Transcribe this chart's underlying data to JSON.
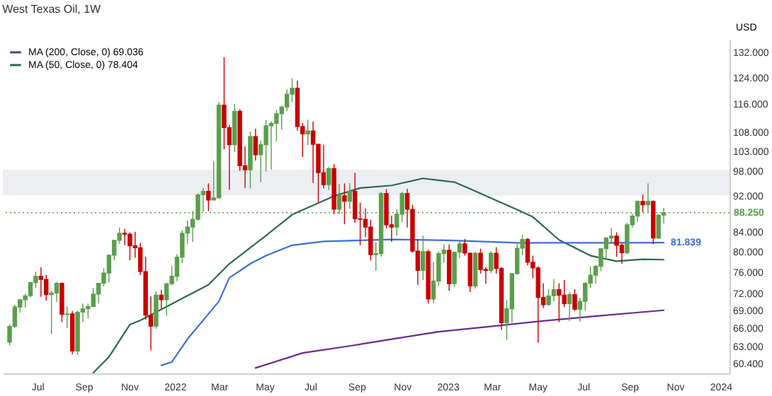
{
  "chart_data": {
    "type": "candlestick",
    "title": "West Texas Oil, 1W",
    "ylabel": "USD",
    "x": [
      "2021-05-24",
      "2021-05-31",
      "2021-06-07",
      "2021-06-14",
      "2021-06-21",
      "2021-06-28",
      "2021-07-05",
      "2021-07-12",
      "2021-07-19",
      "2021-07-26",
      "2021-08-02",
      "2021-08-09",
      "2021-08-16",
      "2021-08-23",
      "2021-08-30",
      "2021-09-06",
      "2021-09-13",
      "2021-09-20",
      "2021-09-27",
      "2021-10-04",
      "2021-10-11",
      "2021-10-18",
      "2021-10-25",
      "2021-11-01",
      "2021-11-08",
      "2021-11-15",
      "2021-11-22",
      "2021-11-29",
      "2021-12-06",
      "2021-12-13",
      "2021-12-20",
      "2021-12-27",
      "2022-01-03",
      "2022-01-10",
      "2022-01-17",
      "2022-01-24",
      "2022-01-31",
      "2022-02-07",
      "2022-02-14",
      "2022-02-21",
      "2022-02-28",
      "2022-03-07",
      "2022-03-14",
      "2022-03-21",
      "2022-03-28",
      "2022-04-04",
      "2022-04-11",
      "2022-04-18",
      "2022-04-25",
      "2022-05-02",
      "2022-05-09",
      "2022-05-16",
      "2022-05-23",
      "2022-05-30",
      "2022-06-06",
      "2022-06-13",
      "2022-06-20",
      "2022-06-27",
      "2022-07-04",
      "2022-07-11",
      "2022-07-18",
      "2022-07-25",
      "2022-08-01",
      "2022-08-08",
      "2022-08-15",
      "2022-08-22",
      "2022-08-29",
      "2022-09-05",
      "2022-09-12",
      "2022-09-19",
      "2022-09-26",
      "2022-10-03",
      "2022-10-10",
      "2022-10-17",
      "2022-10-24",
      "2022-10-31",
      "2022-11-07",
      "2022-11-14",
      "2022-11-21",
      "2022-11-28",
      "2022-12-05",
      "2022-12-12",
      "2022-12-19",
      "2022-12-26",
      "2023-01-02",
      "2023-01-09",
      "2023-01-16",
      "2023-01-23",
      "2023-01-30",
      "2023-02-06",
      "2023-02-13",
      "2023-02-20",
      "2023-02-27",
      "2023-03-06",
      "2023-03-13",
      "2023-03-20",
      "2023-03-27",
      "2023-04-03",
      "2023-04-10",
      "2023-04-17",
      "2023-04-24",
      "2023-05-01",
      "2023-05-08",
      "2023-05-15",
      "2023-05-22",
      "2023-05-29",
      "2023-06-05",
      "2023-06-12",
      "2023-06-19",
      "2023-06-26",
      "2023-07-03",
      "2023-07-10",
      "2023-07-17",
      "2023-07-24",
      "2023-07-31",
      "2023-08-07",
      "2023-08-14",
      "2023-08-21",
      "2023-08-28",
      "2023-09-04",
      "2023-09-11",
      "2023-09-18",
      "2023-09-25",
      "2023-10-02",
      "2023-10-09",
      "2023-10-16"
    ],
    "ohlc": [
      [
        63.7,
        66.6,
        63.2,
        66.3
      ],
      [
        66.3,
        70.0,
        66.0,
        69.6
      ],
      [
        69.6,
        71.0,
        68.6,
        70.9
      ],
      [
        70.9,
        72.0,
        69.5,
        71.6
      ],
      [
        71.6,
        74.2,
        71.3,
        74.0
      ],
      [
        74.0,
        76.1,
        73.0,
        75.2
      ],
      [
        75.2,
        76.9,
        71.4,
        74.6
      ],
      [
        74.6,
        75.5,
        70.7,
        71.8
      ],
      [
        71.8,
        72.5,
        65.0,
        72.1
      ],
      [
        72.1,
        74.1,
        70.5,
        73.9
      ],
      [
        73.9,
        74.0,
        67.0,
        68.3
      ],
      [
        68.3,
        69.7,
        66.0,
        68.4
      ],
      [
        68.4,
        68.9,
        61.8,
        62.3
      ],
      [
        62.3,
        69.0,
        61.7,
        68.7
      ],
      [
        68.7,
        70.2,
        67.0,
        69.3
      ],
      [
        69.3,
        70.2,
        67.6,
        69.7
      ],
      [
        69.7,
        73.0,
        69.6,
        71.9
      ],
      [
        71.9,
        74.0,
        70.2,
        73.9
      ],
      [
        73.9,
        76.7,
        73.3,
        75.8
      ],
      [
        75.8,
        79.5,
        74.0,
        79.3
      ],
      [
        79.3,
        82.4,
        78.3,
        82.3
      ],
      [
        82.3,
        85.0,
        81.6,
        83.8
      ],
      [
        83.8,
        84.7,
        81.3,
        83.6
      ],
      [
        83.6,
        84.0,
        78.3,
        81.2
      ],
      [
        81.2,
        84.1,
        78.8,
        80.8
      ],
      [
        80.8,
        81.8,
        75.4,
        76.1
      ],
      [
        76.1,
        79.0,
        67.4,
        68.2
      ],
      [
        68.2,
        71.5,
        62.4,
        66.3
      ],
      [
        66.3,
        72.4,
        65.9,
        71.7
      ],
      [
        71.7,
        72.7,
        69.3,
        70.9
      ],
      [
        70.9,
        74.0,
        68.1,
        73.8
      ],
      [
        73.8,
        77.2,
        73.5,
        75.2
      ],
      [
        75.2,
        79.5,
        74.3,
        78.9
      ],
      [
        78.9,
        84.4,
        77.8,
        83.8
      ],
      [
        83.8,
        86.5,
        81.6,
        85.1
      ],
      [
        85.1,
        88.6,
        82.0,
        86.8
      ],
      [
        86.8,
        92.7,
        86.5,
        92.3
      ],
      [
        92.3,
        93.9,
        88.4,
        93.1
      ],
      [
        93.1,
        95.0,
        88.6,
        91.1
      ],
      [
        91.1,
        100.5,
        91.0,
        91.6
      ],
      [
        91.6,
        116.6,
        91.5,
        115.7
      ],
      [
        115.7,
        130.5,
        103.5,
        109.3
      ],
      [
        109.3,
        110.0,
        93.5,
        104.7
      ],
      [
        104.7,
        116.0,
        102.8,
        113.9
      ],
      [
        113.9,
        114.5,
        98.0,
        99.3
      ],
      [
        99.3,
        104.2,
        93.9,
        98.3
      ],
      [
        98.3,
        108.2,
        93.8,
        106.9
      ],
      [
        106.9,
        109.0,
        100.6,
        102.1
      ],
      [
        102.1,
        105.8,
        95.3,
        104.7
      ],
      [
        104.7,
        111.4,
        97.9,
        109.8
      ],
      [
        109.8,
        111.0,
        98.4,
        110.5
      ],
      [
        110.5,
        114.3,
        105.6,
        113.2
      ],
      [
        113.2,
        115.5,
        108.8,
        115.1
      ],
      [
        115.1,
        120.4,
        113.9,
        118.9
      ],
      [
        118.9,
        123.7,
        116.5,
        120.7
      ],
      [
        120.7,
        123.0,
        108.5,
        109.6
      ],
      [
        109.6,
        110.5,
        101.5,
        107.6
      ],
      [
        107.6,
        111.5,
        104.6,
        108.4
      ],
      [
        108.4,
        111.0,
        95.1,
        104.8
      ],
      [
        104.8,
        105.0,
        90.6,
        97.6
      ],
      [
        97.6,
        104.7,
        93.8,
        94.7
      ],
      [
        94.7,
        99.0,
        93.4,
        98.6
      ],
      [
        98.6,
        99.7,
        87.9,
        89.0
      ],
      [
        89.0,
        94.9,
        87.9,
        92.1
      ],
      [
        92.1,
        95.0,
        85.7,
        90.8
      ],
      [
        90.8,
        95.1,
        89.1,
        93.1
      ],
      [
        93.1,
        97.6,
        86.0,
        86.9
      ],
      [
        86.9,
        90.5,
        81.3,
        86.8
      ],
      [
        86.8,
        89.2,
        83.0,
        85.1
      ],
      [
        85.1,
        86.7,
        78.2,
        79.4
      ],
      [
        79.4,
        82.0,
        76.3,
        79.6
      ],
      [
        79.6,
        93.0,
        79.0,
        92.6
      ],
      [
        92.6,
        93.6,
        84.8,
        85.6
      ],
      [
        85.6,
        87.6,
        82.0,
        85.1
      ],
      [
        85.1,
        89.0,
        83.3,
        87.9
      ],
      [
        87.9,
        93.0,
        86.2,
        92.6
      ],
      [
        92.6,
        93.7,
        85.0,
        89.0
      ],
      [
        89.0,
        90.0,
        79.8,
        80.1
      ],
      [
        80.1,
        82.6,
        73.6,
        76.3
      ],
      [
        76.3,
        83.3,
        74.5,
        80.0
      ],
      [
        80.0,
        80.4,
        70.2,
        71.0
      ],
      [
        71.0,
        77.9,
        70.3,
        74.3
      ],
      [
        74.3,
        80.1,
        73.4,
        79.6
      ],
      [
        79.6,
        81.5,
        77.8,
        80.3
      ],
      [
        80.3,
        81.5,
        72.5,
        73.8
      ],
      [
        73.8,
        80.0,
        73.2,
        79.9
      ],
      [
        79.9,
        82.4,
        78.7,
        81.6
      ],
      [
        81.6,
        82.6,
        79.2,
        79.7
      ],
      [
        79.7,
        79.8,
        72.3,
        73.4
      ],
      [
        73.4,
        80.0,
        72.9,
        79.7
      ],
      [
        79.7,
        80.6,
        75.7,
        76.5
      ],
      [
        76.5,
        77.0,
        73.8,
        76.3
      ],
      [
        76.3,
        80.1,
        75.8,
        79.7
      ],
      [
        79.7,
        80.9,
        75.7,
        76.7
      ],
      [
        76.7,
        77.0,
        65.7,
        66.9
      ],
      [
        66.9,
        70.8,
        64.1,
        69.3
      ],
      [
        69.3,
        75.7,
        66.9,
        75.7
      ],
      [
        75.7,
        81.8,
        75.5,
        80.7
      ],
      [
        80.7,
        83.5,
        79.3,
        82.5
      ],
      [
        82.5,
        82.8,
        77.3,
        77.9
      ],
      [
        77.9,
        79.2,
        74.8,
        76.8
      ],
      [
        76.8,
        77.1,
        63.6,
        71.3
      ],
      [
        71.3,
        73.9,
        69.4,
        70.0
      ],
      [
        70.0,
        72.8,
        69.9,
        71.6
      ],
      [
        71.6,
        74.7,
        70.6,
        72.7
      ],
      [
        72.7,
        73.9,
        67.0,
        71.7
      ],
      [
        71.7,
        74.5,
        69.6,
        70.2
      ],
      [
        70.2,
        72.2,
        67.2,
        71.8
      ],
      [
        71.8,
        72.8,
        68.9,
        69.2
      ],
      [
        69.2,
        71.2,
        67.1,
        70.6
      ],
      [
        70.6,
        74.1,
        69.0,
        73.9
      ],
      [
        73.9,
        77.1,
        73.0,
        75.4
      ],
      [
        75.4,
        77.4,
        73.8,
        77.1
      ],
      [
        77.1,
        80.7,
        76.2,
        80.6
      ],
      [
        80.6,
        83.0,
        78.7,
        82.8
      ],
      [
        82.8,
        84.9,
        81.6,
        83.2
      ],
      [
        83.2,
        84.0,
        79.0,
        81.3
      ],
      [
        81.3,
        81.8,
        77.6,
        79.8
      ],
      [
        79.8,
        86.0,
        79.5,
        85.6
      ],
      [
        85.6,
        88.0,
        85.0,
        87.5
      ],
      [
        87.5,
        91.0,
        86.3,
        90.8
      ],
      [
        90.8,
        92.4,
        88.3,
        90.0
      ],
      [
        90.0,
        95.0,
        88.3,
        90.8
      ],
      [
        90.8,
        91.0,
        81.5,
        82.8
      ],
      [
        82.8,
        87.9,
        82.6,
        87.7
      ],
      [
        87.7,
        89.3,
        85.9,
        88.25
      ]
    ],
    "colors": [
      "#5a9f4c",
      "#5a9f4c",
      "#5a9f4c",
      "#5a9f4c",
      "#5a9f4c",
      "#5a9f4c",
      "#c80000",
      "#c80000",
      "#5a9f4c",
      "#5a9f4c",
      "#c80000",
      "#5a9f4c",
      "#c80000",
      "#5a9f4c",
      "#5a9f4c",
      "#5a9f4c",
      "#5a9f4c",
      "#5a9f4c",
      "#5a9f4c",
      "#5a9f4c",
      "#5a9f4c",
      "#5a9f4c",
      "#c80000",
      "#c80000",
      "#c80000",
      "#c80000",
      "#c80000",
      "#c80000",
      "#5a9f4c",
      "#c80000",
      "#5a9f4c",
      "#5a9f4c",
      "#5a9f4c",
      "#5a9f4c",
      "#5a9f4c",
      "#5a9f4c",
      "#5a9f4c",
      "#5a9f4c",
      "#c80000",
      "#5a9f4c",
      "#5a9f4c",
      "#c80000",
      "#c80000",
      "#5a9f4c",
      "#c80000",
      "#c80000",
      "#5a9f4c",
      "#c80000",
      "#5a9f4c",
      "#5a9f4c",
      "#5a9f4c",
      "#5a9f4c",
      "#5a9f4c",
      "#5a9f4c",
      "#5a9f4c",
      "#c80000",
      "#c80000",
      "#5a9f4c",
      "#c80000",
      "#c80000",
      "#c80000",
      "#5a9f4c",
      "#c80000",
      "#5a9f4c",
      "#c80000",
      "#5a9f4c",
      "#c80000",
      "#c80000",
      "#c80000",
      "#c80000",
      "#5a9f4c",
      "#5a9f4c",
      "#c80000",
      "#c80000",
      "#5a9f4c",
      "#5a9f4c",
      "#c80000",
      "#c80000",
      "#c80000",
      "#5a9f4c",
      "#c80000",
      "#5a9f4c",
      "#5a9f4c",
      "#5a9f4c",
      "#c80000",
      "#5a9f4c",
      "#5a9f4c",
      "#c80000",
      "#c80000",
      "#5a9f4c",
      "#c80000",
      "#c80000",
      "#5a9f4c",
      "#c80000",
      "#c80000",
      "#5a9f4c",
      "#5a9f4c",
      "#5a9f4c",
      "#5a9f4c",
      "#c80000",
      "#c80000",
      "#c80000",
      "#c80000",
      "#5a9f4c",
      "#5a9f4c",
      "#c80000",
      "#c80000",
      "#5a9f4c",
      "#c80000",
      "#5a9f4c",
      "#5a9f4c",
      "#5a9f4c",
      "#5a9f4c",
      "#5a9f4c",
      "#5a9f4c",
      "#5a9f4c",
      "#c80000",
      "#c80000",
      "#5a9f4c",
      "#5a9f4c",
      "#5a9f4c",
      "#c80000",
      "#5a9f4c",
      "#c80000",
      "#5a9f4c",
      "#5a9f4c"
    ],
    "series": [
      {
        "name": "MA (200, Close, 0) 69.036",
        "type": "line",
        "color": "#6a2c91",
        "x": [
          "2022-04-18",
          "2022-06-20",
          "2022-08-22",
          "2022-10-17",
          "2022-12-19",
          "2023-02-20",
          "2023-05-15",
          "2023-07-24",
          "2023-10-16"
        ],
        "values": [
          59.7,
          62.0,
          63.1,
          64.2,
          65.4,
          66.2,
          67.3,
          68.1,
          69.036
        ]
      },
      {
        "name": "MA (50, Close, 0) 78.404",
        "type": "line",
        "color": "#2e6b4f",
        "x": [
          "2021-09-13",
          "2021-10-04",
          "2021-11-01",
          "2021-11-15",
          "2022-02-14",
          "2022-03-14",
          "2022-05-02",
          "2022-06-06",
          "2022-08-01",
          "2022-09-05",
          "2022-10-17",
          "2022-11-28",
          "2023-01-09",
          "2023-01-30",
          "2023-03-06",
          "2023-04-03",
          "2023-04-24",
          "2023-05-29",
          "2023-07-10",
          "2023-08-14",
          "2023-09-18",
          "2023-10-16"
        ],
        "values": [
          59.0,
          61.4,
          66.6,
          67.3,
          73.6,
          77.6,
          83.3,
          87.8,
          92.0,
          93.9,
          94.5,
          96.2,
          95.3,
          93.7,
          91.0,
          88.9,
          87.3,
          82.4,
          79.2,
          78.1,
          78.5,
          78.404
        ]
      },
      {
        "type": "line",
        "color": "#3d6fe0",
        "x": [
          "2021-12-13",
          "2021-12-27",
          "2022-01-17",
          "2022-02-28",
          "2022-03-14",
          "2022-04-11",
          "2022-05-02",
          "2022-06-06",
          "2022-07-18",
          "2022-10-17",
          "2023-01-02",
          "2023-04-03",
          "2023-07-24",
          "2023-10-16"
        ],
        "values": [
          60.1,
          60.6,
          64.2,
          70.6,
          74.9,
          77.6,
          79.2,
          81.3,
          82.1,
          82.5,
          82.3,
          81.8,
          81.8,
          81.839
        ]
      }
    ],
    "xlim": [
      "2021-05-15",
      "2024-01-12"
    ],
    "xticks": [
      {
        "value": "2021-07-01",
        "label": "Jul"
      },
      {
        "value": "2021-09-01",
        "label": "Sep"
      },
      {
        "value": "2021-11-01",
        "label": "Nov"
      },
      {
        "value": "2022-01-01",
        "label": "2022"
      },
      {
        "value": "2022-03-01",
        "label": "Mar"
      },
      {
        "value": "2022-05-01",
        "label": "May"
      },
      {
        "value": "2022-07-01",
        "label": "Jul"
      },
      {
        "value": "2022-09-01",
        "label": "Sep"
      },
      {
        "value": "2022-11-01",
        "label": "Nov"
      },
      {
        "value": "2023-01-01",
        "label": "2023"
      },
      {
        "value": "2023-03-01",
        "label": "Mar"
      },
      {
        "value": "2023-05-01",
        "label": "May"
      },
      {
        "value": "2023-07-01",
        "label": "Jul"
      },
      {
        "value": "2023-09-01",
        "label": "Sep"
      },
      {
        "value": "2023-11-01",
        "label": "Nov"
      },
      {
        "value": "2024-01-01",
        "label": "2024"
      }
    ],
    "log": true,
    "ylim": [
      58.9,
      136.4
    ],
    "yticks": [
      {
        "value": 132,
        "label": "132.000"
      },
      {
        "value": 124,
        "label": "124.000"
      },
      {
        "value": 116,
        "label": "116.000"
      },
      {
        "value": 108,
        "label": "108.000"
      },
      {
        "value": 103,
        "label": "103.000"
      },
      {
        "value": 98,
        "label": "98.000"
      },
      {
        "value": 92,
        "label": "92.000"
      },
      {
        "value": 84,
        "label": "84.000"
      },
      {
        "value": 80,
        "label": "80.000"
      },
      {
        "value": 76,
        "label": "76.000"
      },
      {
        "value": 72,
        "label": "72.000"
      },
      {
        "value": 69,
        "label": "69.000"
      },
      {
        "value": 66,
        "label": "66.000"
      },
      {
        "value": 63,
        "label": "63.000"
      },
      {
        "value": 60.4,
        "label": "60.400"
      }
    ],
    "bands": [
      {
        "axis": "y",
        "from": 92.2,
        "to": 98.3,
        "color": "#eceef2"
      }
    ],
    "ref_lines": [
      {
        "axis": "y",
        "value": 88.25,
        "label": "88.250",
        "color": "#5a9f4c",
        "line_style": "dotted"
      }
    ],
    "annotations": [
      {
        "text": "81.839",
        "x": "2023-10-16",
        "y": 81.839
      }
    ],
    "legend": "top left",
    "marker": "none"
  }
}
